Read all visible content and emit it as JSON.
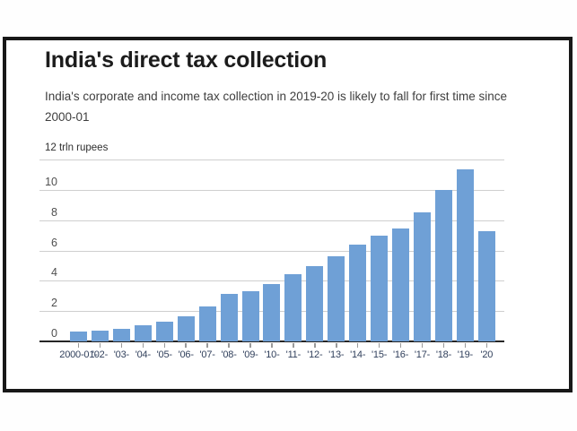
{
  "card": {
    "border_color": "#181818",
    "background": "#ffffff"
  },
  "chart_data": {
    "type": "bar",
    "title": "India's direct tax collection",
    "subtitle": "India's corporate and income tax collection in 2019-20 is likely to fall for first time since 2000-01",
    "unit_label": "12 trln rupees",
    "xlabel": "",
    "ylabel": "trln rupees",
    "ylim": [
      0,
      12
    ],
    "grid": true,
    "y_ticks": [
      10,
      8,
      6,
      4,
      2,
      0
    ],
    "categories": [
      "2000-01",
      "'02",
      "'03",
      "'04",
      "'05",
      "'06",
      "'07",
      "'08",
      "'09",
      "'10",
      "'11",
      "'12",
      "'13",
      "'14",
      "'15",
      "'16",
      "'17",
      "'18",
      "'19",
      "'20"
    ],
    "values": [
      0.68,
      0.69,
      0.83,
      1.05,
      1.32,
      1.65,
      2.3,
      3.14,
      3.33,
      3.78,
      4.46,
      4.94,
      5.59,
      6.38,
      6.96,
      7.42,
      8.49,
      10.02,
      11.37,
      7.3
    ],
    "label_separator": "-",
    "bar_color": "#6fa0d6",
    "grid_color": "#cfcfcf",
    "baseline_color": "#262626",
    "axis_text_color": "#31405c",
    "ytick_text_color": "#4f4f4f"
  }
}
